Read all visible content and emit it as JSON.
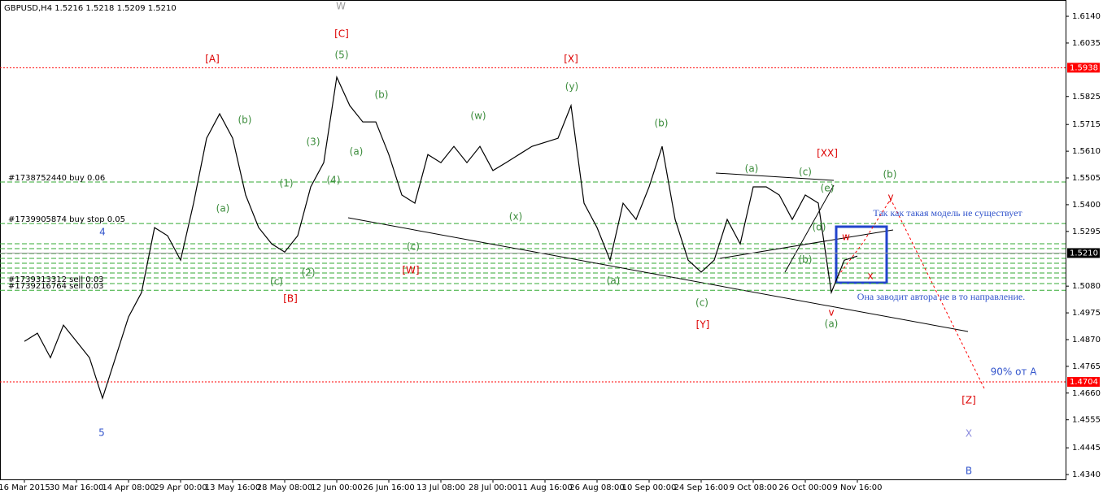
{
  "chart_data": {
    "type": "line",
    "title": "GBPUSD,H4  1.5216 1.5218 1.5209 1.5210",
    "categories": [
      "16 Mar 2015",
      null,
      null,
      null,
      "30 Mar 16:00",
      null,
      null,
      null,
      "14 Apr 08:00",
      null,
      null,
      null,
      "29 Apr 00:00",
      null,
      null,
      null,
      "13 May 16:00",
      null,
      null,
      null,
      "28 May 08:00",
      null,
      null,
      null,
      "12 Jun 00:00",
      null,
      null,
      null,
      "26 Jun 16:00",
      null,
      null,
      null,
      "13 Jul 08:00",
      null,
      null,
      null,
      "28 Jul 00:00",
      null,
      null,
      null,
      "11 Aug 16:00",
      null,
      null,
      null,
      "26 Aug 08:00",
      null,
      null,
      null,
      "10 Sep 00:00",
      null,
      null,
      null,
      "24 Sep 16:00",
      null,
      null,
      null,
      "9 Oct 08:00",
      null,
      null,
      null,
      "26 Oct 00:00",
      null,
      null,
      null,
      "9 Nov 16:00"
    ],
    "values": [
      1.4863,
      1.4895,
      1.4799,
      1.4927,
      1.4863,
      1.4799,
      1.464,
      1.4799,
      1.4959,
      1.5055,
      1.531,
      1.5278,
      1.5182,
      1.5406,
      1.5661,
      1.5757,
      1.5661,
      1.5438,
      1.531,
      1.5246,
      1.5214,
      1.5278,
      1.547,
      1.5565,
      1.5901,
      1.5789,
      1.5725,
      1.5725,
      1.5597,
      1.5438,
      1.5406,
      1.5597,
      1.5565,
      1.5629,
      1.5565,
      1.5629,
      1.5534,
      1.5565,
      1.5597,
      1.5629,
      1.5645,
      1.5661,
      1.5789,
      1.5406,
      1.531,
      1.5182,
      1.5406,
      1.5342,
      1.547,
      1.5629,
      1.5342,
      1.5182,
      1.5135,
      1.5182,
      1.5342,
      1.5246,
      1.547,
      1.547,
      1.5438,
      1.5342,
      1.5438,
      1.5406,
      1.5055,
      1.5182,
      1.5198
    ],
    "color": "#000000",
    "ylim": [
      1.4321,
      1.6204
    ],
    "yticks": [
      {
        "value": 1.614,
        "label": "1.6140"
      },
      1.6035,
      1.5825,
      1.5715,
      {
        "value": 1.561,
        "label": "1.5610"
      },
      1.5505,
      {
        "value": 1.54,
        "label": "1.5400"
      },
      1.5295,
      {
        "value": 1.508,
        "label": "1.5080"
      },
      1.4975,
      {
        "value": 1.487,
        "label": "1.4870"
      },
      1.4765,
      {
        "value": 1.466,
        "label": "1.4660"
      },
      1.4555,
      1.4445,
      {
        "value": 1.434,
        "label": "1.4340"
      }
    ],
    "price_levels": [
      1.5938,
      1.4704
    ],
    "price_level_color": "#ff0000",
    "current_price": {
      "value": 1.521,
      "label": "1.5210"
    },
    "order_lines": [
      {
        "value": 1.5489,
        "label": "#1738752440 buy 0.06"
      },
      {
        "value": 1.5326,
        "label": "#1739905874 buy stop 0.05"
      },
      {
        "value": 1.509,
        "label": "#1739313312 sell 0.03"
      },
      {
        "value": 1.5064,
        "label": "#1739216764 sell 0.03"
      }
    ],
    "order_line_color": "#33aa33",
    "annotations": [
      {
        "text": "W",
        "color": "#999999"
      },
      {
        "text": "[C]",
        "color": "#dd0000"
      },
      {
        "text": "[A]",
        "color": "#dd0000"
      },
      {
        "text": "[X]",
        "color": "#dd0000"
      },
      {
        "text": "(5)",
        "color": "#3c8c3c"
      },
      {
        "text": "(y)",
        "color": "#3c8c3c"
      },
      {
        "text": "(b)",
        "color": "#3c8c3c"
      },
      {
        "text": "(b)",
        "color": "#3c8c3c"
      },
      {
        "text": "(w)",
        "color": "#3c8c3c"
      },
      {
        "text": "(b)",
        "color": "#3c8c3c"
      },
      {
        "text": "(3)",
        "color": "#3c8c3c"
      },
      {
        "text": "(a)",
        "color": "#3c8c3c"
      },
      {
        "text": "[XX]",
        "color": "#dd0000"
      },
      {
        "text": "(a)",
        "color": "#3c8c3c"
      },
      {
        "text": "(c)",
        "color": "#3c8c3c"
      },
      {
        "text": "(b)",
        "color": "#3c8c3c"
      },
      {
        "text": "(1)",
        "color": "#3c8c3c"
      },
      {
        "text": "(4)",
        "color": "#3c8c3c"
      },
      {
        "text": "(e)",
        "color": "#3c8c3c"
      },
      {
        "text": "(a)",
        "color": "#3c8c3c"
      },
      {
        "text": "(x)",
        "color": "#3c8c3c"
      },
      {
        "text": "y",
        "color": "#dd0000"
      },
      {
        "text": "(d)",
        "color": "#3c8c3c"
      },
      {
        "text": "(c)",
        "color": "#3c8c3c"
      },
      {
        "text": "[W]",
        "color": "#dd0000"
      },
      {
        "text": "(c)",
        "color": "#3c8c3c"
      },
      {
        "text": "(2)",
        "color": "#3c8c3c"
      },
      {
        "text": "(a)",
        "color": "#3c8c3c"
      },
      {
        "text": "[B]",
        "color": "#dd0000"
      },
      {
        "text": "(c)",
        "color": "#3c8c3c"
      },
      {
        "text": "[Y]",
        "color": "#dd0000"
      },
      {
        "text": "(b)",
        "color": "#3c8c3c"
      },
      {
        "text": "v",
        "color": "#dd0000"
      },
      {
        "text": "(a)",
        "color": "#3c8c3c"
      },
      {
        "text": "w",
        "color": "#dd0000"
      },
      {
        "text": "x",
        "color": "#dd0000"
      },
      {
        "text": "4",
        "color": "#3355cc"
      },
      {
        "text": "5",
        "color": "#3355cc"
      },
      {
        "text": "[Z]",
        "color": "#dd0000"
      },
      {
        "text": "X",
        "color": "#8888dd"
      },
      {
        "text": "B",
        "color": "#3355cc"
      },
      {
        "text": "90% от A",
        "color": "#3355cc"
      },
      {
        "text": "Так как такая модель  не существует",
        "color": "#3355cc"
      },
      {
        "text": "Она заводит автора не в то направление.",
        "color": "#3355cc"
      }
    ]
  }
}
